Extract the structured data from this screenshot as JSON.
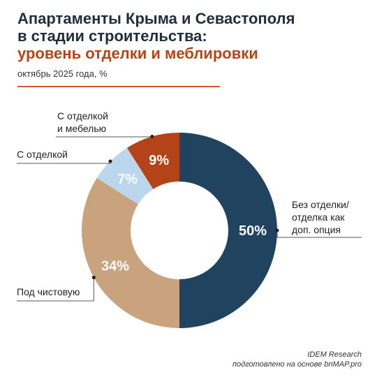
{
  "header": {
    "title_line1": "Апартаменты Крыма и Севастополя",
    "title_line2": "в стадии строительства:",
    "title_line3": "уровень отделки и меблировки",
    "subtitle": "октябрь 2025 года, %"
  },
  "chart_data": {
    "type": "pie",
    "variant": "donut",
    "title": "Апартаменты Крыма и Севастополя в стадии строительства: уровень отделки и меблировки",
    "subtitle": "октябрь 2025 года, %",
    "categories": [
      "Без отделки/ отделка как доп. опция",
      "Под чистовую",
      "С отделкой",
      "С отделкой и мебелью"
    ],
    "values": [
      50,
      34,
      7,
      9
    ],
    "value_labels": [
      "50%",
      "34%",
      "7%",
      "9%"
    ],
    "colors": [
      "#20445f",
      "#c9a27e",
      "#bcd6ee",
      "#b5431a"
    ],
    "label_colors": [
      "#ffffff",
      "#ffffff",
      "#ffffff",
      "#ffffff"
    ],
    "legend": "callout labels"
  },
  "labels": {
    "no_finish_line1": "Без отделки/",
    "no_finish_line2": "отделка как",
    "no_finish_line3": "доп. опция",
    "prefinish": "Под чистовую",
    "finish": "С отделкой",
    "furnished_line1": "С отделкой",
    "furnished_line2": "и мебелью"
  },
  "credits": {
    "line1": "IDEM Research",
    "line2": "подготовлено на основе bnMAP.pro"
  }
}
